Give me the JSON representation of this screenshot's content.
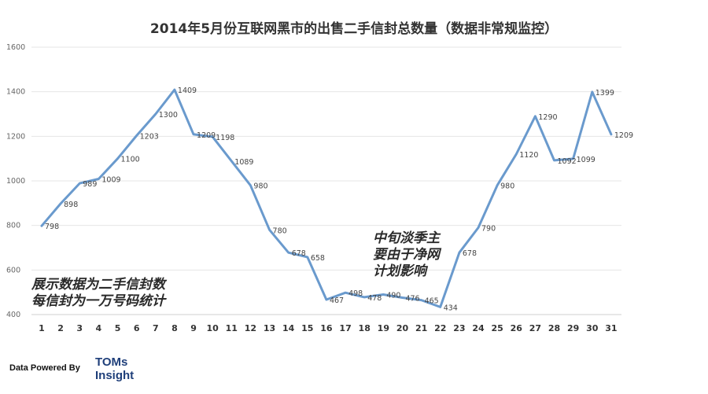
{
  "chart_data": {
    "type": "line",
    "title": "2014年5月份互联网黑市的出售二手信封总数量（数据非常规监控）",
    "xlabel": "",
    "ylabel": "",
    "x": [
      "1",
      "2",
      "3",
      "4",
      "5",
      "6",
      "7",
      "8",
      "9",
      "10",
      "11",
      "12",
      "13",
      "14",
      "15",
      "16",
      "17",
      "18",
      "19",
      "20",
      "21",
      "22",
      "23",
      "24",
      "25",
      "26",
      "27",
      "28",
      "29",
      "30",
      "31"
    ],
    "series": [
      {
        "values": [
          798,
          898,
          989,
          1009,
          1100,
          1203,
          1300,
          1409,
          1209,
          1198,
          1089,
          980,
          780,
          678,
          658,
          467,
          498,
          478,
          490,
          476,
          465,
          434,
          678,
          790,
          980,
          1120,
          1290,
          1092,
          1099,
          1399,
          1209
        ],
        "labels": [
          "798",
          "898",
          "989",
          "1009",
          "1100",
          "1203",
          "1300",
          "1409",
          "1209",
          "1198",
          "1089",
          "980",
          "780",
          "678",
          "658",
          "467",
          "498",
          "478",
          "490",
          "476",
          "465",
          "434",
          "678",
          "790",
          "980",
          "1120",
          "1290",
          "1092",
          "1099",
          "1399",
          "1209"
        ],
        "color": "#6a9acd"
      }
    ],
    "yticks": [
      "400",
      "600",
      "800",
      "1000",
      "1200",
      "1400",
      "1600"
    ],
    "ylim": [
      400,
      1600
    ],
    "grid": true,
    "legend": "none"
  },
  "annotations": {
    "left_line1": "展示数据为二手信封数",
    "left_line2": "每信封为一万号码统计",
    "mid_line1": "中旬淡季主",
    "mid_line2": "要由于净网",
    "mid_line3": "计划影响"
  },
  "footer": {
    "powered_by": "Data Powered By",
    "brand_line1": "TOMs",
    "brand_line2": "Insight"
  }
}
